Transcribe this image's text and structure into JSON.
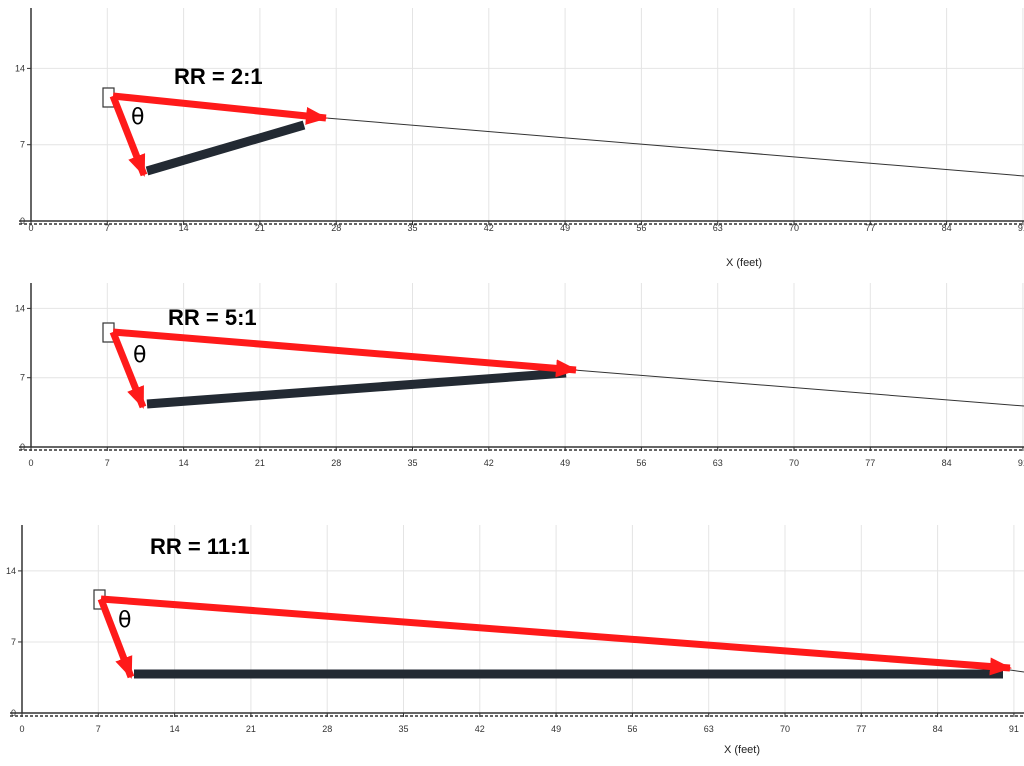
{
  "x_axis_label": "X (feet)",
  "x_ticks": [
    "0",
    "7",
    "14",
    "21",
    "28",
    "35",
    "42",
    "49",
    "56",
    "63",
    "70",
    "77",
    "84",
    "91"
  ],
  "y_ticks": [
    "0",
    "7",
    "14"
  ],
  "angle_symbol": "θ",
  "colors": {
    "arrow": "#ff1a1a",
    "beam": "#232a33",
    "grid": "#e4e4e4",
    "ray": "#333333"
  },
  "panels": [
    {
      "ratio_label": "RR = 2:1",
      "show_xlabel": true
    },
    {
      "ratio_label": "RR = 5:1",
      "show_xlabel": false
    },
    {
      "ratio_label": "RR = 11:1",
      "show_xlabel": true
    }
  ]
}
